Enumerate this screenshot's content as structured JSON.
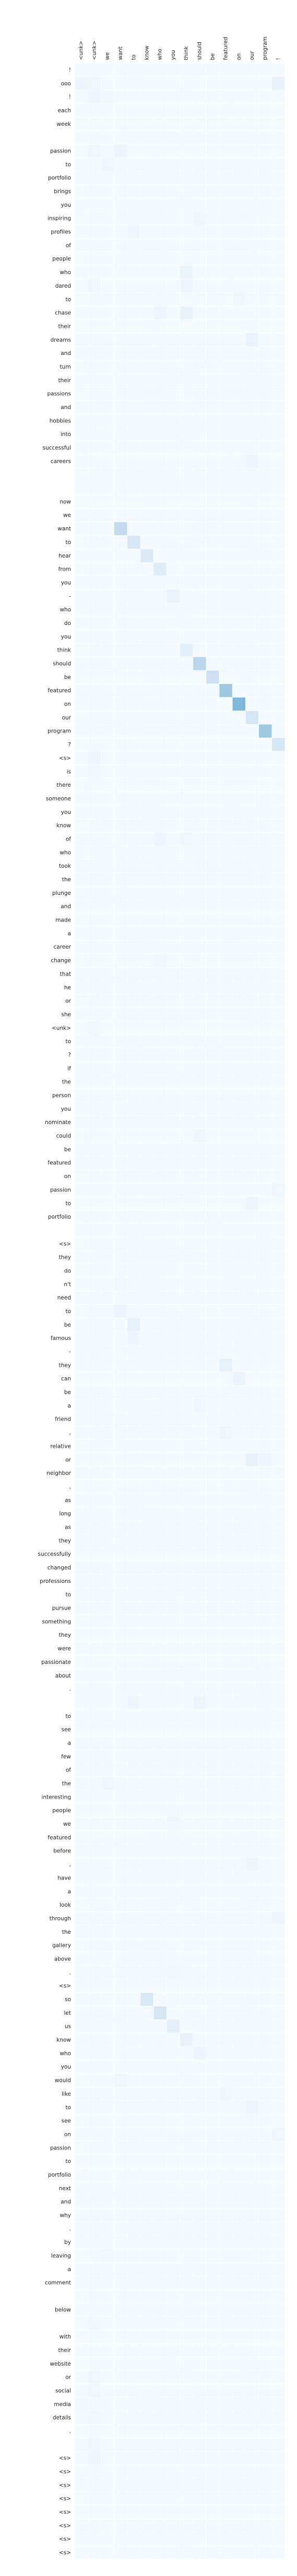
{
  "chart_data": {
    "type": "heatmap",
    "title": "",
    "xlabel": "",
    "ylabel": "",
    "colormap": [
      "#f7fbff",
      "#deebf7",
      "#c6dbef",
      "#9ecae1",
      "#6baed6",
      "#4292c6",
      "#2171b5"
    ],
    "grid_color": "#ffffff",
    "value_range": [
      0,
      1
    ],
    "background_value": 0.02,
    "x_labels": [
      "<unk>",
      "<unk>",
      "we",
      "want",
      "to",
      "know",
      "who",
      "you",
      "think",
      "should",
      "be",
      "featured",
      "on",
      "our",
      "program",
      "!"
    ],
    "y_labels": [
      "!",
      "ooo",
      "!",
      "each",
      "week",
      "",
      "passion",
      "to",
      "portfolio",
      "brings",
      "you",
      "inspiring",
      "profiles",
      "of",
      "people",
      "who",
      "dared",
      "to",
      "chase",
      "their",
      "dreams",
      "and",
      "turn",
      "their",
      "passions",
      "and",
      "hobbies",
      "into",
      "successful",
      "careers",
      "",
      "",
      "now",
      "we",
      "want",
      "to",
      "hear",
      "from",
      "you",
      "-",
      "who",
      "do",
      "you",
      "think",
      "should",
      "be",
      "featured",
      "on",
      "our",
      "program",
      "?",
      "<s>",
      "is",
      "there",
      "someone",
      "you",
      "know",
      "of",
      "who",
      "took",
      "the",
      "plunge",
      "and",
      "made",
      "a",
      "career",
      "change",
      "that",
      "he",
      "or",
      "she",
      "<unk>",
      "to",
      "?",
      "if",
      "the",
      "person",
      "you",
      "nominate",
      "could",
      "be",
      "featured",
      "on",
      "passion",
      "to",
      "portfolio",
      "",
      "<s>",
      "they",
      "do",
      "n't",
      "need",
      "to",
      "be",
      "famous",
      "-",
      "they",
      "can",
      "be",
      "a",
      "friend",
      ",",
      "relative",
      "or",
      "neighbor",
      ",",
      "as",
      "long",
      "as",
      "they",
      "successfully",
      "changed",
      "professions",
      "to",
      "pursue",
      "something",
      "they",
      "were",
      "passionate",
      "about",
      ".",
      "",
      "to",
      "see",
      "a",
      "few",
      "of",
      "the",
      "interesting",
      "people",
      "we",
      "featured",
      "before",
      ",",
      "have",
      "a",
      "look",
      "through",
      "the",
      "gallery",
      "above",
      ".",
      "<s>",
      "so",
      "let",
      "us",
      "know",
      "who",
      "you",
      "would",
      "like",
      "to",
      "see",
      "on",
      "passion",
      "to",
      "portfolio",
      "next",
      "and",
      "why",
      ".",
      "by",
      "leaving",
      "a",
      "comment",
      "",
      "below",
      "",
      "with",
      "their",
      "website",
      "or",
      "social",
      "media",
      "details",
      ".",
      "",
      "<s>",
      "<s>",
      "<s>",
      "<s>",
      "<s>",
      "<s>",
      "<s>",
      "<s>"
    ],
    "highlights": [
      [
        1,
        0,
        0.06
      ],
      [
        1,
        1,
        0.05
      ],
      [
        2,
        1,
        0.06
      ],
      [
        2,
        2,
        0.04
      ],
      [
        1,
        15,
        0.1
      ],
      [
        6,
        1,
        0.05
      ],
      [
        6,
        3,
        0.07
      ],
      [
        7,
        2,
        0.05
      ],
      [
        11,
        9,
        0.05
      ],
      [
        12,
        4,
        0.05
      ],
      [
        15,
        8,
        0.09
      ],
      [
        16,
        1,
        0.05
      ],
      [
        16,
        8,
        0.07
      ],
      [
        17,
        12,
        0.05
      ],
      [
        18,
        6,
        0.06
      ],
      [
        18,
        8,
        0.1
      ],
      [
        20,
        13,
        0.09
      ],
      [
        29,
        13,
        0.06
      ],
      [
        34,
        3,
        0.35
      ],
      [
        35,
        4,
        0.22
      ],
      [
        36,
        5,
        0.18
      ],
      [
        37,
        6,
        0.16
      ],
      [
        39,
        7,
        0.09
      ],
      [
        43,
        8,
        0.14
      ],
      [
        44,
        9,
        0.38
      ],
      [
        45,
        10,
        0.28
      ],
      [
        46,
        11,
        0.5
      ],
      [
        47,
        12,
        0.6
      ],
      [
        48,
        13,
        0.22
      ],
      [
        49,
        14,
        0.5
      ],
      [
        50,
        15,
        0.22
      ],
      [
        51,
        1,
        0.06
      ],
      [
        52,
        1,
        0.04
      ],
      [
        57,
        6,
        0.06
      ],
      [
        57,
        8,
        0.05
      ],
      [
        66,
        6,
        0.04
      ],
      [
        71,
        1,
        0.04
      ],
      [
        79,
        9,
        0.05
      ],
      [
        84,
        13,
        0.06
      ],
      [
        83,
        15,
        0.05
      ],
      [
        90,
        3,
        0.05
      ],
      [
        92,
        3,
        0.07
      ],
      [
        93,
        4,
        0.1
      ],
      [
        94,
        4,
        0.06
      ],
      [
        96,
        11,
        0.1
      ],
      [
        97,
        12,
        0.08
      ],
      [
        99,
        9,
        0.05
      ],
      [
        101,
        11,
        0.05
      ],
      [
        103,
        13,
        0.1
      ],
      [
        103,
        14,
        0.06
      ],
      [
        121,
        4,
        0.06
      ],
      [
        121,
        9,
        0.07
      ],
      [
        127,
        2,
        0.05
      ],
      [
        130,
        7,
        0.05
      ],
      [
        133,
        13,
        0.07
      ],
      [
        137,
        15,
        0.06
      ],
      [
        141,
        7,
        0.05
      ],
      [
        143,
        5,
        0.2
      ],
      [
        144,
        6,
        0.22
      ],
      [
        145,
        7,
        0.12
      ],
      [
        146,
        8,
        0.1
      ],
      [
        147,
        9,
        0.06
      ],
      [
        149,
        3,
        0.05
      ],
      [
        150,
        11,
        0.05
      ],
      [
        151,
        13,
        0.06
      ],
      [
        153,
        15,
        0.05
      ],
      [
        162,
        2,
        0.04
      ],
      [
        167,
        1,
        0.04
      ],
      [
        171,
        1,
        0.05
      ],
      [
        172,
        1,
        0.05
      ],
      [
        173,
        0,
        0.04
      ],
      [
        174,
        1,
        0.04
      ],
      [
        176,
        1,
        0.05
      ],
      [
        177,
        1,
        0.06
      ]
    ]
  }
}
